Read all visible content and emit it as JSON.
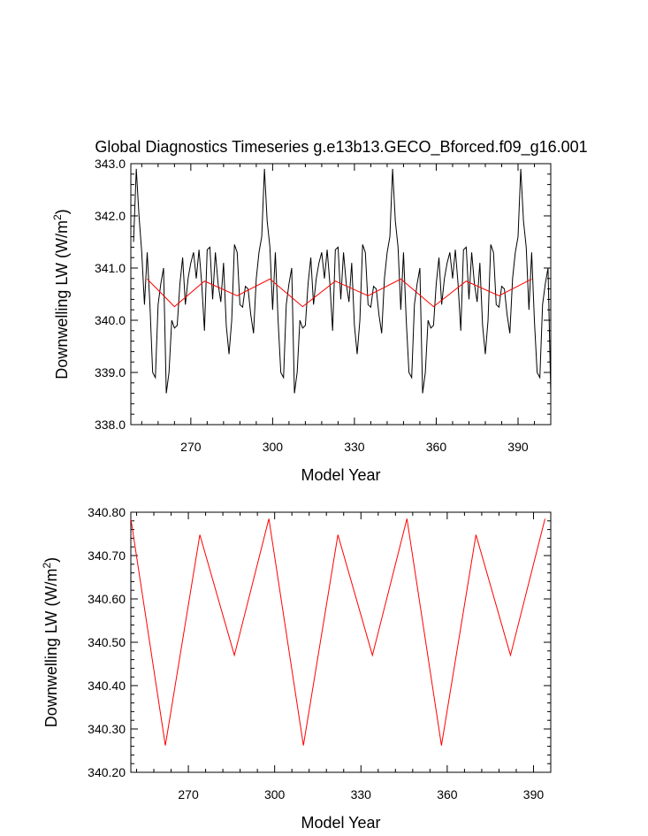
{
  "title": "Global Diagnostics Timeseries g.e13b13.GECO_Bforced.f09_g16.001",
  "chart_data": [
    {
      "type": "line",
      "xlabel": "Model Year",
      "ylabel_main": "Downwelling LW (W/m",
      "ylabel_sup": "2",
      "ylabel_tail": ")",
      "xlim": [
        248,
        402
      ],
      "ylim": [
        338,
        343
      ],
      "x_ticks": [
        270,
        300,
        330,
        360,
        390
      ],
      "y_ticks": [
        338.0,
        339.0,
        340.0,
        341.0,
        342.0,
        343.0
      ],
      "y_tick_labels": [
        "338.0",
        "339.0",
        "340.0",
        "341.0",
        "342.0",
        "343.0"
      ],
      "series": [
        {
          "color": "#000000",
          "x_start": 249,
          "x_step": 1,
          "values": [
            341.5,
            342.9,
            342.0,
            341.3,
            340.3,
            341.3,
            340.3,
            339.0,
            338.9,
            340.3,
            340.7,
            341.0,
            338.6,
            339.0,
            340.0,
            339.85,
            339.9,
            340.7,
            341.2,
            340.3,
            340.8,
            341.1,
            341.3,
            340.8,
            341.35,
            340.7,
            339.8,
            341.35,
            341.4,
            340.4,
            341.3,
            340.7,
            340.35,
            341.1,
            339.9,
            339.35,
            340.0,
            341.45,
            341.3,
            340.3,
            340.25,
            340.65,
            340.6,
            340.1,
            339.75,
            340.8,
            341.3,
            341.6,
            342.9,
            341.9,
            341.4,
            340.2,
            341.3,
            340.0,
            339.0,
            338.9,
            340.3,
            340.7,
            341.0,
            338.6,
            339.0,
            340.0,
            339.85,
            339.9,
            340.7,
            341.2,
            340.3,
            340.8,
            341.1,
            341.3,
            340.8,
            341.35,
            340.7,
            339.8,
            341.35,
            341.4,
            340.4,
            341.3,
            340.7,
            340.35,
            341.1,
            339.9,
            339.35,
            340.0,
            341.45,
            341.3,
            340.3,
            340.25,
            340.65,
            340.6,
            340.1,
            339.75,
            340.8,
            341.3,
            341.6,
            342.9,
            341.9,
            341.4,
            340.2,
            341.3,
            340.0,
            339.0,
            338.9,
            340.3,
            340.7,
            341.0,
            338.6,
            339.0,
            340.0,
            339.85,
            339.9,
            340.7,
            341.2,
            340.3,
            340.8,
            341.1,
            341.3,
            340.8,
            341.35,
            340.7,
            339.8,
            341.35,
            341.4,
            340.4,
            341.3,
            340.7,
            340.35,
            341.1,
            339.9,
            339.35,
            340.0,
            341.45,
            341.3,
            340.3,
            340.25,
            340.65,
            340.6,
            340.1,
            339.75,
            340.8,
            341.3,
            341.6,
            342.9,
            341.9,
            341.4,
            340.2,
            341.3,
            340.0,
            339.0,
            338.9,
            340.3,
            340.7,
            341.0,
            338.6
          ]
        },
        {
          "color": "#ff0000",
          "x": [
            254,
            264,
            275,
            287,
            299,
            311,
            323,
            335,
            347,
            359,
            371,
            383,
            395
          ],
          "values": [
            340.79,
            340.26,
            340.75,
            340.47,
            340.79,
            340.26,
            340.75,
            340.47,
            340.79,
            340.26,
            340.75,
            340.47,
            340.79
          ]
        }
      ]
    },
    {
      "type": "line",
      "xlabel": "Model Year",
      "ylabel_main": "Downwelling LW (W/m",
      "ylabel_sup": "2",
      "ylabel_tail": ")",
      "xlim": [
        250,
        396
      ],
      "ylim": [
        340.2,
        340.8
      ],
      "x_ticks": [
        270,
        300,
        330,
        360,
        390
      ],
      "y_ticks": [
        340.2,
        340.3,
        340.4,
        340.5,
        340.6,
        340.7,
        340.8
      ],
      "y_tick_labels": [
        "340.20",
        "340.30",
        "340.40",
        "340.50",
        "340.60",
        "340.70",
        "340.80"
      ],
      "series": [
        {
          "color": "#ff0000",
          "x": [
            250,
            262,
            274,
            286,
            298,
            310,
            322,
            334,
            346,
            358,
            370,
            382,
            394
          ],
          "values": [
            340.785,
            340.262,
            340.748,
            340.47,
            340.785,
            340.262,
            340.748,
            340.47,
            340.785,
            340.262,
            340.748,
            340.47,
            340.785
          ]
        }
      ]
    }
  ]
}
